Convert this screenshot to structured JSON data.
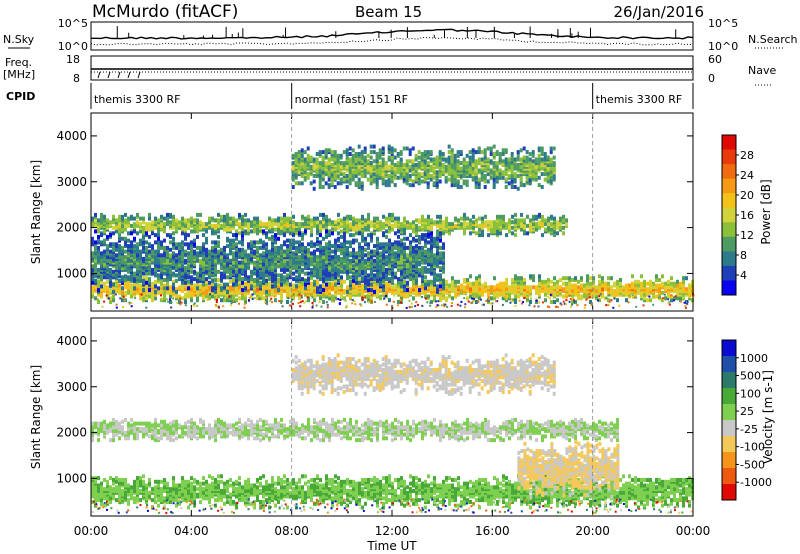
{
  "header": {
    "station": "McMurdo (fitACF)",
    "beam": "Beam 15",
    "date": "26/Jan/2016"
  },
  "summary_panels": {
    "nsky_label": "N.Sky",
    "nsky_ticks": [
      "10^5",
      "10^0"
    ],
    "nsearch_label": "N.Search",
    "nsearch_ticks": [
      "10^5",
      "10^0"
    ],
    "freq_label_line1": "Freq.",
    "freq_label_line2": "[MHz]",
    "freq_ticks": [
      "18",
      "8"
    ],
    "nave_label": "Nave",
    "nave_ticks": [
      "60",
      "0"
    ],
    "cpid_label": "CPID",
    "cpid_segments": [
      {
        "label": "themis 3300 RF",
        "start_hour": 0,
        "end_hour": 8
      },
      {
        "label": "normal (fast) 151 RF",
        "start_hour": 8,
        "end_hour": 20
      },
      {
        "label": "themis 3300 RF",
        "start_hour": 20,
        "end_hour": 24
      }
    ]
  },
  "chart_data": [
    {
      "type": "heatmap",
      "name": "Power",
      "x_unit": "hour UT",
      "xlim": [
        0,
        24
      ],
      "ylabel": "Slant Range [km]",
      "ylim": [
        180,
        4500
      ],
      "y_ticks": [
        1000,
        2000,
        3000,
        4000
      ],
      "colorbar_label": "Power [dB]",
      "colorbar_ticks": [
        "4",
        "8",
        "12",
        "16",
        "20",
        "24",
        "28"
      ],
      "colorbar_range": [
        0,
        30
      ],
      "colors": [
        "#0a00f0",
        "#1f3fb8",
        "#2d7a8a",
        "#4d9a62",
        "#8ac03a",
        "#d2d23a",
        "#f2c21a",
        "#f59a12",
        "#f06a10",
        "#e83a0a",
        "#e00a05"
      ],
      "bands": [
        {
          "center_km": 2100,
          "width_km": 260,
          "start_hour": 0,
          "end_hour": 19,
          "level": 14
        },
        {
          "center_km": 700,
          "width_km": 320,
          "start_hour": 0,
          "end_hour": 24,
          "level": 19
        },
        {
          "center_km": 3350,
          "width_km": 500,
          "start_hour": 8,
          "end_hour": 18.5,
          "level": 12
        },
        {
          "center_km": 1300,
          "width_km": 700,
          "start_hour": 0,
          "end_hour": 14,
          "level": 8
        }
      ]
    },
    {
      "type": "heatmap",
      "name": "Velocity",
      "x_unit": "hour UT",
      "xlim": [
        0,
        24
      ],
      "ylabel": "Slant Range [km]",
      "ylim": [
        180,
        4500
      ],
      "y_ticks": [
        1000,
        2000,
        3000,
        4000
      ],
      "colorbar_label": "Velocity [m s-1]",
      "colorbar_ticks": [
        "1000",
        "500",
        "100",
        "25",
        "-25",
        "-100",
        "-500",
        "-1000"
      ],
      "colorbar_range": [
        -1000,
        1000
      ],
      "colors": [
        "#e00a05",
        "#f05a10",
        "#f5941a",
        "#f5c85a",
        "#c8c8c8",
        "#7fd050",
        "#48a838",
        "#2d7a6a",
        "#1f4fa8",
        "#0a0ad0"
      ],
      "bands": [
        {
          "center_km": 2100,
          "width_km": 260,
          "start_hour": 0,
          "end_hour": 21,
          "velocity": 0
        },
        {
          "center_km": 750,
          "width_km": 380,
          "start_hour": 0,
          "end_hour": 24,
          "velocity": 180
        },
        {
          "center_km": 3300,
          "width_km": 450,
          "start_hour": 8,
          "end_hour": 18.5,
          "velocity": -150
        },
        {
          "center_km": 1250,
          "width_km": 650,
          "start_hour": 17,
          "end_hour": 21,
          "velocity": -250
        }
      ]
    }
  ],
  "x_axis": {
    "label": "Time UT",
    "tick_labels": [
      "00:00",
      "04:00",
      "08:00",
      "12:00",
      "16:00",
      "20:00",
      "00:00"
    ],
    "tick_hours": [
      0,
      4,
      8,
      12,
      16,
      20,
      24
    ]
  }
}
